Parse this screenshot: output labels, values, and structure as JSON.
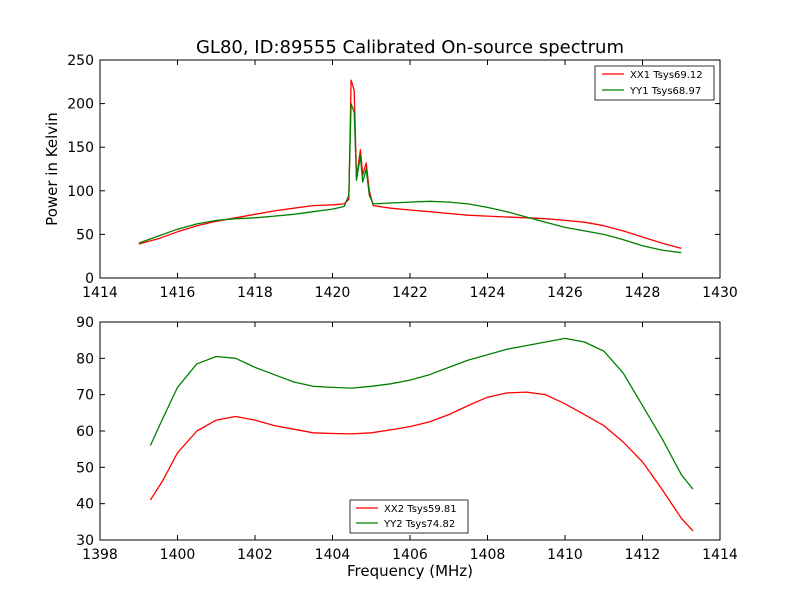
{
  "chart_data": [
    {
      "type": "line",
      "title": "GL80, ID:89555 Calibrated On-source spectrum",
      "xlabel": "",
      "ylabel": "Power in Kelvin",
      "xlim": [
        1414,
        1430
      ],
      "ylim": [
        0,
        250
      ],
      "xticks": [
        "1414",
        "1416",
        "1418",
        "1420",
        "1422",
        "1424",
        "1426",
        "1428",
        "1430"
      ],
      "yticks": [
        "0",
        "50",
        "100",
        "150",
        "200",
        "250"
      ],
      "grid": false,
      "legend_position": "top-right",
      "series": [
        {
          "name": "XX1 Tsys69.12",
          "color": "#ff0000",
          "points": [
            [
              1415.0,
              39
            ],
            [
              1415.5,
              45
            ],
            [
              1416.0,
              53
            ],
            [
              1416.5,
              60
            ],
            [
              1417.0,
              65
            ],
            [
              1417.5,
              69
            ],
            [
              1418.0,
              73
            ],
            [
              1418.5,
              77
            ],
            [
              1419.0,
              80
            ],
            [
              1419.5,
              83
            ],
            [
              1420.0,
              84
            ],
            [
              1420.3,
              85
            ],
            [
              1420.42,
              90
            ],
            [
              1420.48,
              227
            ],
            [
              1420.56,
              215
            ],
            [
              1420.62,
              115
            ],
            [
              1420.72,
              147
            ],
            [
              1420.78,
              118
            ],
            [
              1420.87,
              132
            ],
            [
              1420.95,
              100
            ],
            [
              1421.05,
              83
            ],
            [
              1421.5,
              80
            ],
            [
              1422.0,
              78
            ],
            [
              1422.5,
              76
            ],
            [
              1423.0,
              74
            ],
            [
              1423.5,
              72
            ],
            [
              1424.0,
              71
            ],
            [
              1424.5,
              70
            ],
            [
              1425.0,
              69
            ],
            [
              1425.5,
              68
            ],
            [
              1426.0,
              66
            ],
            [
              1426.5,
              64
            ],
            [
              1427.0,
              60
            ],
            [
              1427.5,
              54
            ],
            [
              1428.0,
              47
            ],
            [
              1428.5,
              40
            ],
            [
              1429.0,
              34
            ]
          ]
        },
        {
          "name": "YY1 Tsys68.97",
          "color": "#008000",
          "points": [
            [
              1415.0,
              40
            ],
            [
              1415.5,
              48
            ],
            [
              1416.0,
              56
            ],
            [
              1416.5,
              62
            ],
            [
              1417.0,
              66
            ],
            [
              1417.5,
              68
            ],
            [
              1418.0,
              69
            ],
            [
              1418.5,
              71
            ],
            [
              1419.0,
              73
            ],
            [
              1419.5,
              76
            ],
            [
              1420.0,
              79
            ],
            [
              1420.3,
              82
            ],
            [
              1420.42,
              95
            ],
            [
              1420.48,
              200
            ],
            [
              1420.56,
              190
            ],
            [
              1420.62,
              112
            ],
            [
              1420.72,
              140
            ],
            [
              1420.78,
              110
            ],
            [
              1420.87,
              125
            ],
            [
              1420.95,
              95
            ],
            [
              1421.05,
              85
            ],
            [
              1421.5,
              86
            ],
            [
              1422.0,
              87
            ],
            [
              1422.5,
              88
            ],
            [
              1423.0,
              87
            ],
            [
              1423.5,
              85
            ],
            [
              1424.0,
              81
            ],
            [
              1424.5,
              76
            ],
            [
              1425.0,
              70
            ],
            [
              1425.5,
              64
            ],
            [
              1426.0,
              58
            ],
            [
              1426.5,
              54
            ],
            [
              1427.0,
              50
            ],
            [
              1427.5,
              44
            ],
            [
              1428.0,
              37
            ],
            [
              1428.5,
              32
            ],
            [
              1429.0,
              29
            ]
          ]
        }
      ]
    },
    {
      "type": "line",
      "title": "",
      "xlabel": "Frequency (MHz)",
      "ylabel": "",
      "xlim": [
        1398,
        1414
      ],
      "ylim": [
        30,
        90
      ],
      "xticks": [
        "1398",
        "1400",
        "1402",
        "1404",
        "1406",
        "1408",
        "1410",
        "1412",
        "1414"
      ],
      "yticks": [
        "30",
        "40",
        "50",
        "60",
        "70",
        "80",
        "90"
      ],
      "grid": false,
      "legend_position": "lower-center",
      "series": [
        {
          "name": "XX2 Tsys59.81",
          "color": "#ff0000",
          "points": [
            [
              1399.3,
              41
            ],
            [
              1399.6,
              46
            ],
            [
              1400.0,
              54
            ],
            [
              1400.5,
              60
            ],
            [
              1401.0,
              63
            ],
            [
              1401.5,
              64
            ],
            [
              1402.0,
              63
            ],
            [
              1402.5,
              61.5
            ],
            [
              1403.0,
              60.5
            ],
            [
              1403.5,
              59.5
            ],
            [
              1404.0,
              59.3
            ],
            [
              1404.5,
              59.2
            ],
            [
              1405.0,
              59.5
            ],
            [
              1405.5,
              60.3
            ],
            [
              1406.0,
              61.2
            ],
            [
              1406.5,
              62.5
            ],
            [
              1407.0,
              64.5
            ],
            [
              1407.5,
              67
            ],
            [
              1408.0,
              69.3
            ],
            [
              1408.5,
              70.5
            ],
            [
              1409.0,
              70.7
            ],
            [
              1409.5,
              70
            ],
            [
              1410.0,
              67.5
            ],
            [
              1410.5,
              64.5
            ],
            [
              1411.0,
              61.5
            ],
            [
              1411.5,
              57
            ],
            [
              1412.0,
              51.5
            ],
            [
              1412.5,
              44
            ],
            [
              1413.0,
              36
            ],
            [
              1413.3,
              32.5
            ]
          ]
        },
        {
          "name": "YY2 Tsys74.82",
          "color": "#008000",
          "points": [
            [
              1399.3,
              56
            ],
            [
              1399.6,
              63
            ],
            [
              1400.0,
              72
            ],
            [
              1400.5,
              78.5
            ],
            [
              1401.0,
              80.5
            ],
            [
              1401.5,
              80
            ],
            [
              1402.0,
              77.5
            ],
            [
              1402.5,
              75.5
            ],
            [
              1403.0,
              73.5
            ],
            [
              1403.5,
              72.3
            ],
            [
              1404.0,
              72
            ],
            [
              1404.5,
              71.8
            ],
            [
              1405.0,
              72.3
            ],
            [
              1405.5,
              73
            ],
            [
              1406.0,
              74
            ],
            [
              1406.5,
              75.5
            ],
            [
              1407.0,
              77.5
            ],
            [
              1407.5,
              79.5
            ],
            [
              1408.0,
              81
            ],
            [
              1408.5,
              82.5
            ],
            [
              1409.0,
              83.5
            ],
            [
              1409.5,
              84.5
            ],
            [
              1410.0,
              85.5
            ],
            [
              1410.5,
              84.5
            ],
            [
              1411.0,
              82
            ],
            [
              1411.5,
              76
            ],
            [
              1412.0,
              67
            ],
            [
              1412.5,
              58
            ],
            [
              1413.0,
              48
            ],
            [
              1413.3,
              44
            ]
          ]
        }
      ]
    }
  ]
}
